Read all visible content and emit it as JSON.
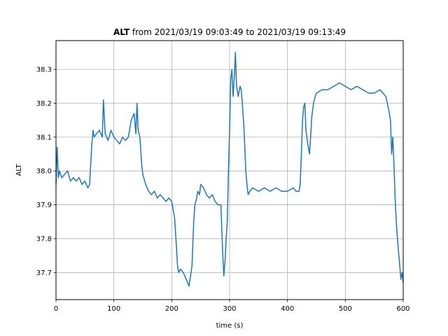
{
  "chart_data": {
    "type": "line",
    "title_bold": "ALT",
    "title_rest": " from 2021/03/19 09:03:49 to 2021/03/19 09:13:49",
    "xlabel": "time (s)",
    "ylabel": "ALT",
    "xlim": [
      0,
      600
    ],
    "ylim": [
      37.62,
      38.385
    ],
    "xticks": [
      0,
      100,
      200,
      300,
      400,
      500,
      600
    ],
    "yticks": [
      37.7,
      37.8,
      37.9,
      38.0,
      38.1,
      38.2,
      38.3
    ],
    "grid": true,
    "color": "#1f77b4",
    "series": [
      {
        "x": [
          0,
          2,
          4,
          6,
          10,
          15,
          20,
          25,
          30,
          35,
          40,
          45,
          50,
          55,
          58,
          60,
          62,
          64,
          66,
          70,
          75,
          80,
          82,
          85,
          90,
          95,
          100,
          105,
          110,
          115,
          120,
          125,
          130,
          135,
          138,
          140,
          142,
          145,
          148,
          150,
          155,
          160,
          165,
          170,
          175,
          180,
          185,
          190,
          195,
          200,
          205,
          208,
          210,
          212,
          215,
          220,
          225,
          230,
          235,
          238,
          240,
          243,
          245,
          248,
          250,
          255,
          260,
          265,
          270,
          275,
          280,
          285,
          288,
          290,
          292,
          294,
          296,
          298,
          300,
          302,
          304,
          306,
          308,
          310,
          312,
          315,
          318,
          320,
          322,
          325,
          328,
          330,
          332,
          335,
          340,
          350,
          360,
          370,
          380,
          390,
          400,
          410,
          415,
          420,
          422,
          424,
          426,
          428,
          430,
          432,
          435,
          438,
          440,
          442,
          445,
          448,
          450,
          460,
          470,
          480,
          490,
          500,
          510,
          520,
          530,
          540,
          550,
          560,
          570,
          575,
          578,
          580,
          582,
          584,
          586,
          588,
          590,
          592,
          594,
          596,
          598,
          600
        ],
        "y": [
          37.96,
          38.07,
          37.98,
          38.0,
          37.98,
          37.99,
          38.0,
          37.97,
          37.98,
          37.97,
          37.98,
          37.96,
          37.97,
          37.95,
          37.96,
          38.02,
          38.08,
          38.12,
          38.1,
          38.11,
          38.12,
          38.1,
          38.21,
          38.11,
          38.09,
          38.12,
          38.1,
          38.09,
          38.08,
          38.1,
          38.09,
          38.1,
          38.15,
          38.17,
          38.11,
          38.2,
          38.12,
          38.1,
          38.02,
          37.99,
          37.96,
          37.94,
          37.93,
          37.94,
          37.92,
          37.93,
          37.92,
          37.91,
          37.92,
          37.91,
          37.86,
          37.78,
          37.72,
          37.7,
          37.71,
          37.7,
          37.68,
          37.66,
          37.72,
          37.85,
          37.9,
          37.92,
          37.94,
          37.93,
          37.96,
          37.95,
          37.93,
          37.92,
          37.93,
          37.91,
          37.9,
          37.9,
          37.76,
          37.69,
          37.73,
          37.8,
          37.85,
          38.0,
          38.12,
          38.27,
          38.3,
          38.22,
          38.27,
          38.35,
          38.25,
          38.22,
          38.25,
          38.24,
          38.2,
          38.12,
          38.0,
          37.96,
          37.93,
          37.94,
          37.95,
          37.94,
          37.95,
          37.94,
          37.95,
          37.94,
          37.94,
          37.95,
          37.94,
          37.94,
          37.96,
          38.05,
          38.15,
          38.19,
          38.2,
          38.12,
          38.08,
          38.05,
          38.1,
          38.16,
          38.2,
          38.22,
          38.23,
          38.24,
          38.24,
          38.25,
          38.26,
          38.25,
          38.24,
          38.25,
          38.24,
          38.23,
          38.23,
          38.24,
          38.22,
          38.18,
          38.15,
          38.05,
          38.1,
          38.02,
          37.92,
          37.85,
          37.8,
          37.76,
          37.72,
          37.68,
          37.7,
          37.67
        ]
      }
    ]
  }
}
